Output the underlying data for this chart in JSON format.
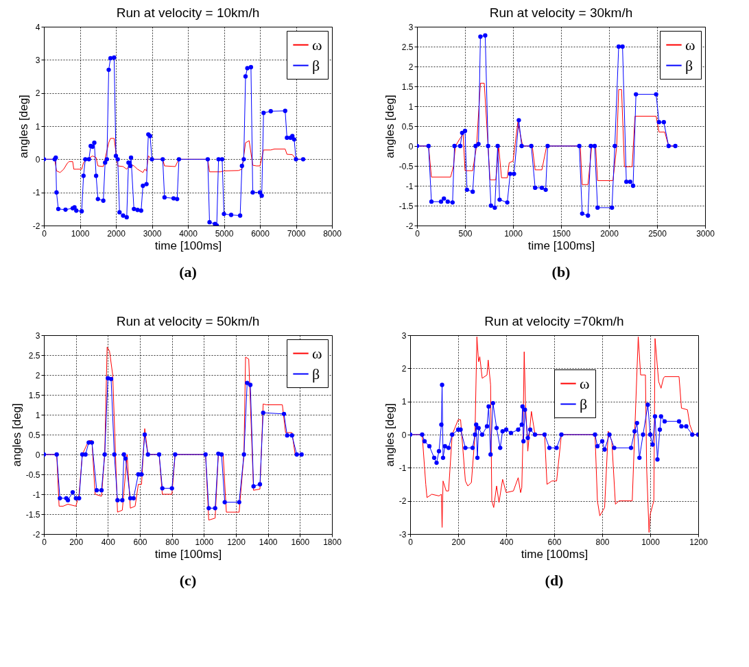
{
  "chart_data": [
    {
      "type": "line",
      "title": "Run at velocity = 10km/h",
      "xlabel": "time [100ms]",
      "ylabel": "angles [deg]",
      "annotations": [
        "(a)"
      ],
      "xlim": [
        0,
        8000
      ],
      "xticks": [
        0,
        1000,
        2000,
        3000,
        4000,
        5000,
        6000,
        7000,
        8000
      ],
      "ylim": [
        -2,
        4
      ],
      "yticks": [
        -2,
        -1,
        0,
        1,
        2,
        3,
        4
      ],
      "grid": true,
      "legend": "top right",
      "series": [
        {
          "name": "ω",
          "color": "#ff0000",
          "marker": "none",
          "x": [
            0,
            300,
            350,
            450,
            550,
            650,
            700,
            800,
            830,
            900,
            1050,
            1100,
            1200,
            1350,
            1450,
            1500,
            1650,
            1800,
            1850,
            1950,
            2050,
            2200,
            2300,
            2400,
            2500,
            2600,
            2750,
            2800,
            2850,
            2900,
            3000,
            3300,
            3350,
            3650,
            3700,
            3750,
            4550,
            4600,
            4900,
            5000,
            5400,
            5500,
            5600,
            5700,
            5800,
            5900,
            6000,
            6100,
            6300,
            6400,
            6700,
            6750,
            6900,
            7000,
            7200
          ],
          "values": [
            0,
            0,
            -0.35,
            -0.4,
            -0.3,
            -0.12,
            -0.07,
            -0.07,
            -0.3,
            -0.3,
            -0.3,
            -0.1,
            0,
            0.1,
            0.05,
            -0.2,
            -0.22,
            0.5,
            0.63,
            0.63,
            -0.2,
            -0.22,
            -0.3,
            -0.15,
            -0.2,
            -0.3,
            -0.4,
            -0.3,
            -0.35,
            0.1,
            0,
            0,
            -0.2,
            -0.22,
            -0.1,
            0,
            0,
            -0.38,
            -0.38,
            -0.35,
            -0.34,
            -0.3,
            0.5,
            0.56,
            -0.18,
            -0.2,
            -0.2,
            0.28,
            0.28,
            0.31,
            0.31,
            0.15,
            0.14,
            0,
            0
          ]
        },
        {
          "name": "β",
          "color": "#0000ff",
          "marker": "circle",
          "x": [
            0,
            300,
            330,
            350,
            400,
            600,
            800,
            850,
            900,
            1050,
            1100,
            1150,
            1250,
            1300,
            1350,
            1400,
            1450,
            1500,
            1650,
            1700,
            1750,
            1800,
            1850,
            1950,
            2000,
            2050,
            2100,
            2200,
            2300,
            2350,
            2400,
            2420,
            2500,
            2600,
            2700,
            2750,
            2850,
            2900,
            2950,
            3000,
            3300,
            3350,
            3600,
            3700,
            3750,
            4550,
            4600,
            4750,
            4800,
            4850,
            4950,
            5000,
            5200,
            5450,
            5500,
            5550,
            5600,
            5650,
            5750,
            5800,
            6000,
            6050,
            6100,
            6300,
            6700,
            6750,
            6850,
            6900,
            6950,
            7000,
            7200
          ],
          "values": [
            0,
            0,
            0.05,
            -1,
            -1.5,
            -1.52,
            -1.48,
            -1.45,
            -1.55,
            -1.57,
            -0.5,
            0,
            0,
            0.4,
            0.38,
            0.5,
            -0.5,
            -1.2,
            -1.25,
            -0.1,
            0,
            2.7,
            3.05,
            3.07,
            0.1,
            0,
            -1.6,
            -1.7,
            -1.75,
            -0.1,
            -0.2,
            0.05,
            -1.5,
            -1.53,
            -1.55,
            -0.8,
            -0.75,
            0.75,
            0.7,
            0,
            0,
            -1.15,
            -1.18,
            -1.2,
            0,
            0,
            -1.9,
            -1.95,
            -2,
            0,
            0,
            -1.65,
            -1.68,
            -1.7,
            -0.2,
            0,
            2.5,
            2.75,
            2.78,
            -1,
            -1,
            -1.1,
            1.4,
            1.45,
            1.46,
            0.65,
            0.65,
            0.7,
            0.6,
            0,
            0
          ]
        }
      ]
    },
    {
      "type": "line",
      "title": "Run at velocity = 30km/h",
      "xlabel": "time [100ms]",
      "ylabel": "angles [deg]",
      "annotations": [
        "(b)"
      ],
      "xlim": [
        0,
        3000
      ],
      "xticks": [
        0,
        500,
        1000,
        1500,
        2000,
        2500,
        3000
      ],
      "ylim": [
        -2,
        3
      ],
      "yticks": [
        -2,
        -1.5,
        -1,
        -0.5,
        0,
        0.5,
        1,
        1.5,
        2,
        2.5,
        3
      ],
      "grid": true,
      "legend": "top right",
      "series": [
        {
          "name": "ω",
          "color": "#ff0000",
          "marker": "none",
          "x": [
            0,
            120,
            150,
            300,
            350,
            380,
            400,
            450,
            480,
            500,
            580,
            620,
            660,
            700,
            740,
            760,
            820,
            850,
            880,
            940,
            960,
            1000,
            1050,
            1100,
            1200,
            1230,
            1300,
            1350,
            1700,
            1720,
            1780,
            1820,
            1860,
            1880,
            2040,
            2080,
            2100,
            2130,
            2160,
            2240,
            2270,
            2490,
            2520,
            2580,
            2620,
            2690
          ],
          "values": [
            0,
            0,
            -0.78,
            -0.78,
            -0.78,
            -0.5,
            0,
            0.2,
            0.3,
            -0.62,
            -0.62,
            0,
            1.58,
            1.58,
            0,
            -0.85,
            -0.85,
            0,
            -0.8,
            -0.8,
            -0.42,
            -0.38,
            0.6,
            0,
            0,
            -0.6,
            -0.6,
            0,
            0,
            -0.97,
            -0.97,
            0,
            0,
            -0.87,
            -0.87,
            0,
            1.42,
            1.42,
            -0.52,
            -0.52,
            0.75,
            0.75,
            0.35,
            0.35,
            0,
            0
          ]
        },
        {
          "name": "β",
          "color": "#0000ff",
          "marker": "circle",
          "x": [
            0,
            120,
            150,
            250,
            280,
            320,
            370,
            390,
            450,
            470,
            500,
            520,
            580,
            610,
            640,
            660,
            710,
            740,
            770,
            810,
            840,
            860,
            940,
            970,
            1010,
            1060,
            1090,
            1190,
            1230,
            1300,
            1340,
            1360,
            1690,
            1720,
            1780,
            1810,
            1850,
            1880,
            2030,
            2060,
            2100,
            2140,
            2180,
            2220,
            2250,
            2280,
            2490,
            2520,
            2570,
            2620,
            2690
          ],
          "values": [
            0,
            0,
            -1.4,
            -1.4,
            -1.32,
            -1.4,
            -1.42,
            0,
            0,
            0.33,
            0.38,
            -1.1,
            -1.15,
            0,
            0.05,
            2.75,
            2.78,
            0,
            -1.5,
            -1.55,
            0,
            -1.35,
            -1.42,
            -0.7,
            -0.7,
            0.65,
            0,
            0,
            -1.05,
            -1.05,
            -1.1,
            0,
            0,
            -1.7,
            -1.75,
            0,
            0,
            -1.55,
            -1.55,
            0,
            2.5,
            2.5,
            -0.9,
            -0.9,
            -1,
            1.3,
            1.3,
            0.6,
            0.6,
            0,
            0
          ]
        }
      ]
    },
    {
      "type": "line",
      "title": "Run at velocity = 50km/h",
      "xlabel": "time [100ms]",
      "ylabel": "angles [deg]",
      "annotations": [
        "(c)"
      ],
      "xlim": [
        0,
        1800
      ],
      "xticks": [
        0,
        200,
        400,
        600,
        800,
        1000,
        1200,
        1400,
        1600,
        1800
      ],
      "ylim": [
        -2,
        3
      ],
      "yticks": [
        -2,
        -1.5,
        -1,
        -0.5,
        0,
        0.5,
        1,
        1.5,
        2,
        2.5,
        3
      ],
      "grid": true,
      "legend": "top right",
      "series": [
        {
          "name": "ω",
          "color": "#ff0000",
          "marker": "none",
          "x": [
            0,
            80,
            95,
            120,
            150,
            200,
            220,
            240,
            280,
            300,
            320,
            360,
            380,
            395,
            410,
            430,
            460,
            490,
            520,
            540,
            570,
            590,
            610,
            630,
            650,
            720,
            740,
            800,
            820,
            1010,
            1030,
            1070,
            1090,
            1120,
            1140,
            1220,
            1250,
            1260,
            1280,
            1310,
            1350,
            1370,
            1390,
            1490,
            1510,
            1550,
            1570,
            1610
          ],
          "values": [
            0,
            0,
            -1.3,
            -1.3,
            -1.25,
            -1.3,
            -1,
            0,
            0.35,
            0.35,
            -1,
            -1.05,
            0,
            2.7,
            2.6,
            2,
            -1.45,
            -1.4,
            0,
            -1.35,
            -1.3,
            -0.75,
            -0.75,
            0.65,
            0,
            0,
            -1,
            -1,
            0,
            0,
            -1.65,
            -1.6,
            0,
            0,
            -1.45,
            -1.45,
            0,
            2.45,
            2.4,
            -0.9,
            -0.87,
            1.27,
            1.25,
            1.25,
            0.55,
            0.55,
            0,
            0
          ]
        },
        {
          "name": "β",
          "color": "#0000ff",
          "marker": "circle",
          "x": [
            0,
            80,
            100,
            140,
            150,
            180,
            200,
            220,
            240,
            260,
            280,
            300,
            330,
            360,
            380,
            400,
            420,
            440,
            460,
            490,
            500,
            510,
            540,
            560,
            590,
            610,
            630,
            650,
            720,
            740,
            800,
            820,
            1010,
            1030,
            1070,
            1090,
            1110,
            1130,
            1220,
            1250,
            1270,
            1290,
            1310,
            1350,
            1370,
            1500,
            1520,
            1550,
            1580,
            1610
          ],
          "values": [
            0,
            0,
            -1.1,
            -1.1,
            -1.15,
            -0.95,
            -1.1,
            -1.1,
            0,
            0,
            0.3,
            0.3,
            -0.9,
            -0.9,
            0,
            1.92,
            1.9,
            0,
            -1.15,
            -1.15,
            0,
            -0.1,
            -1.1,
            -1.1,
            -0.5,
            -0.5,
            0.5,
            0,
            0,
            -0.85,
            -0.85,
            0,
            0,
            -1.35,
            -1.35,
            0.02,
            0,
            -1.2,
            -1.2,
            0,
            1.8,
            1.75,
            -0.8,
            -0.75,
            1.05,
            1.02,
            0.48,
            0.48,
            0,
            0
          ]
        }
      ]
    },
    {
      "type": "line",
      "title": "Run at velocity =70km/h",
      "xlabel": "time [100ms]",
      "ylabel": "angles [deg]",
      "annotations": [
        "(d)"
      ],
      "xlim": [
        0,
        1200
      ],
      "xticks": [
        0,
        200,
        400,
        600,
        800,
        1000,
        1200
      ],
      "ylim": [
        -3,
        3
      ],
      "yticks": [
        -3,
        -2,
        -1,
        0,
        1,
        2,
        3
      ],
      "grid": true,
      "legend": "top",
      "series": [
        {
          "name": "ω",
          "color": "#ff0000",
          "marker": "none",
          "x": [
            0,
            50,
            65,
            70,
            90,
            120,
            130,
            133,
            137,
            150,
            160,
            175,
            200,
            210,
            230,
            240,
            255,
            270,
            278,
            285,
            290,
            300,
            320,
            325,
            335,
            340,
            348,
            360,
            370,
            385,
            400,
            430,
            450,
            460,
            465,
            470,
            475,
            480,
            490,
            505,
            520,
            560,
            570,
            590,
            610,
            630,
            770,
            780,
            790,
            810,
            825,
            840,
            855,
            870,
            925,
            935,
            950,
            960,
            980,
            985,
            995,
            1000,
            1015,
            1020,
            1035,
            1045,
            1055,
            1060,
            1120,
            1130,
            1155,
            1165,
            1180,
            1200
          ],
          "values": [
            0,
            0,
            -1.5,
            -1.9,
            -1.8,
            -1.85,
            -1.8,
            -2.8,
            -1.4,
            -1.7,
            -1.7,
            0,
            0.45,
            0.45,
            -1.4,
            -1.55,
            -1.45,
            0,
            2.95,
            2.2,
            2.35,
            1.7,
            1.8,
            2.25,
            1.5,
            -2,
            -2.2,
            -1.55,
            -2.05,
            -1.35,
            -1.75,
            -1.7,
            -1.3,
            -1.75,
            -1.6,
            0,
            2.5,
            1,
            -0.5,
            0.7,
            0,
            0,
            -1.5,
            -1.4,
            -1.4,
            0,
            0,
            -2,
            -2.45,
            -2.2,
            0.1,
            -0.2,
            -2.1,
            -2,
            -2,
            0,
            2.95,
            1.8,
            1.8,
            -1,
            -2.95,
            -2.4,
            -2,
            2.9,
            1.6,
            1.4,
            1.7,
            1.75,
            1.75,
            0.8,
            0.75,
            0.3,
            0,
            0
          ]
        },
        {
          "name": "β",
          "color": "#0000ff",
          "marker": "circle",
          "x": [
            0,
            50,
            60,
            80,
            100,
            110,
            120,
            130,
            133,
            137,
            145,
            160,
            175,
            200,
            210,
            230,
            260,
            270,
            275,
            280,
            285,
            300,
            320,
            327,
            335,
            345,
            360,
            375,
            385,
            400,
            420,
            450,
            465,
            468,
            472,
            478,
            490,
            500,
            520,
            560,
            580,
            610,
            630,
            770,
            780,
            800,
            810,
            830,
            850,
            920,
            935,
            945,
            955,
            970,
            990,
            1000,
            1010,
            1020,
            1030,
            1040,
            1045,
            1060,
            1120,
            1130,
            1150,
            1175,
            1200
          ],
          "values": [
            0,
            0,
            -0.2,
            -0.35,
            -0.7,
            -0.85,
            -0.5,
            0.3,
            1.5,
            -0.7,
            -0.35,
            -0.4,
            0,
            0.15,
            0.15,
            -0.4,
            -0.4,
            0,
            0.3,
            -0.7,
            0.2,
            0,
            0.25,
            0.85,
            -0.6,
            0.95,
            0.2,
            -0.4,
            0.1,
            0.15,
            0.05,
            0.15,
            0.3,
            0.85,
            -0.2,
            0.75,
            -0.1,
            0.15,
            0,
            0,
            -0.4,
            -0.4,
            0,
            0,
            -0.35,
            -0.2,
            -0.45,
            0,
            -0.4,
            -0.4,
            0.1,
            0.35,
            -0.7,
            0,
            0.9,
            0,
            -0.3,
            0.55,
            -0.75,
            0.15,
            0.55,
            0.4,
            0.4,
            0.25,
            0.25,
            0,
            0
          ]
        }
      ]
    }
  ]
}
